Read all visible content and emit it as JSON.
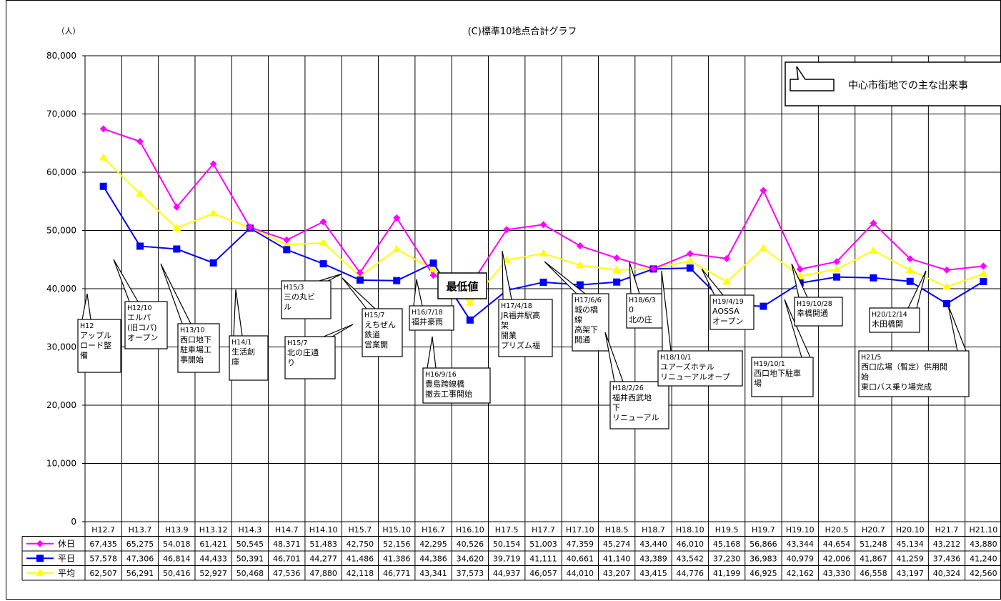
{
  "chart_data": {
    "type": "line",
    "title": "(C)標準10地点合計グラフ",
    "ylabel": "（人）",
    "ylim": [
      0,
      80000
    ],
    "yticks": [
      "0",
      "10,000",
      "20,000",
      "30,000",
      "40,000",
      "50,000",
      "60,000",
      "70,000",
      "80,000"
    ],
    "categories": [
      "H12.7",
      "H13.7",
      "H13.9",
      "H13.12",
      "H14.3",
      "H14.7",
      "H14.10",
      "H15.7",
      "H15.10",
      "H16.7",
      "H16.10",
      "H17.5",
      "H17.7",
      "H17.10",
      "H18.5",
      "H18.7",
      "H18.10",
      "H19.5",
      "H19.7",
      "H19.10",
      "H20.5",
      "H20.7",
      "H20.10",
      "H21.7",
      "H21.10"
    ],
    "series": [
      {
        "name": "休日",
        "color": "#FF00FF",
        "marker": "diamond",
        "values": [
          67435,
          65275,
          54018,
          61421,
          50545,
          48371,
          51483,
          42750,
          52156,
          42295,
          40526,
          50154,
          51003,
          47359,
          45274,
          43440,
          46010,
          45168,
          56866,
          43344,
          44654,
          51248,
          45134,
          43212,
          43880
        ],
        "labels": [
          "67,435",
          "65,275",
          "54,018",
          "61,421",
          "50,545",
          "48,371",
          "51,483",
          "42,750",
          "52,156",
          "42,295",
          "40,526",
          "50,154",
          "51,003",
          "47,359",
          "45,274",
          "43,440",
          "46,010",
          "45,168",
          "56,866",
          "43,344",
          "44,654",
          "51,248",
          "45,134",
          "43,212",
          "43,880"
        ]
      },
      {
        "name": "平日",
        "color": "#0000FF",
        "marker": "square",
        "values": [
          57578,
          47306,
          46814,
          44433,
          50391,
          46701,
          44277,
          41486,
          41386,
          44386,
          34620,
          39719,
          41111,
          40661,
          41140,
          43389,
          43542,
          37230,
          36983,
          40979,
          42006,
          41867,
          41259,
          37436,
          41240
        ],
        "labels": [
          "57,578",
          "47,306",
          "46,814",
          "44,433",
          "50,391",
          "46,701",
          "44,277",
          "41,486",
          "41,386",
          "44,386",
          "34,620",
          "39,719",
          "41,111",
          "40,661",
          "41,140",
          "43,389",
          "43,542",
          "37,230",
          "36,983",
          "40,979",
          "42,006",
          "41,867",
          "41,259",
          "37,436",
          "41,240"
        ]
      },
      {
        "name": "平均",
        "color": "#FFFF00",
        "marker": "triangle",
        "values": [
          62507,
          56291,
          50416,
          52927,
          50468,
          47536,
          47880,
          42118,
          46771,
          43341,
          37573,
          44937,
          46057,
          44010,
          43207,
          43415,
          44776,
          41199,
          46925,
          42162,
          43330,
          46558,
          43197,
          40324,
          42560
        ],
        "labels": [
          "62,507",
          "56,291",
          "50,416",
          "52,927",
          "50,468",
          "47,536",
          "47,880",
          "42,118",
          "46,771",
          "43,341",
          "37,573",
          "44,937",
          "46,057",
          "44,010",
          "43,207",
          "43,415",
          "44,776",
          "41,199",
          "46,925",
          "42,162",
          "43,330",
          "46,558",
          "43,197",
          "40,324",
          "42,560"
        ]
      }
    ],
    "legend_box": "中心市街地での主な出来事",
    "min_label": "最低値",
    "callouts": [
      {
        "lines": [
          "H12",
          "アップル",
          "ロード整",
          "備"
        ]
      },
      {
        "lines": [
          "H12/10",
          "エルパ",
          "(旧コパ)",
          "オープン"
        ]
      },
      {
        "lines": [
          "H13/10",
          "西口地下",
          "駐車場工",
          "事開始"
        ]
      },
      {
        "lines": [
          "H14/1",
          "生活創",
          "庫"
        ]
      },
      {
        "lines": [
          "H15/3",
          "三の丸ビ",
          "ル"
        ]
      },
      {
        "lines": [
          "H15/7",
          "北の庄通",
          "り"
        ]
      },
      {
        "lines": [
          "H15/7",
          "えちぜん",
          "鉄道",
          "営業開"
        ]
      },
      {
        "lines": [
          "H16/7/18",
          "福井豪雨"
        ]
      },
      {
        "lines": [
          "H16/9/16",
          "豊島跨線橋",
          "撤去工事開始"
        ]
      },
      {
        "lines": [
          "H17/4/18",
          "JR福井駅高",
          "架",
          "開業",
          "プリズム福"
        ]
      },
      {
        "lines": [
          "H17/6/6",
          "城の橋",
          "線",
          "高架下",
          "開通"
        ]
      },
      {
        "lines": [
          "H18/2/26",
          "福井西武地",
          "下",
          "リニューアル"
        ]
      },
      {
        "lines": [
          "H18/6/3",
          "0",
          "北の庄"
        ]
      },
      {
        "lines": [
          "H18/10/1",
          "ユアーズホテル",
          "リニューアルオープ"
        ]
      },
      {
        "lines": [
          "H19/4/19",
          "AOSSA",
          "オープン"
        ]
      },
      {
        "lines": [
          "H19/10/1",
          "西口地下駐車",
          "場"
        ]
      },
      {
        "lines": [
          "H19/10/28",
          "幸橋開通"
        ]
      },
      {
        "lines": [
          "H20/12/14",
          "木田橋開"
        ]
      },
      {
        "lines": [
          "H21/5",
          "西口広場（暫定）供用開",
          "始",
          "東口バス乗り場完成"
        ]
      }
    ]
  }
}
